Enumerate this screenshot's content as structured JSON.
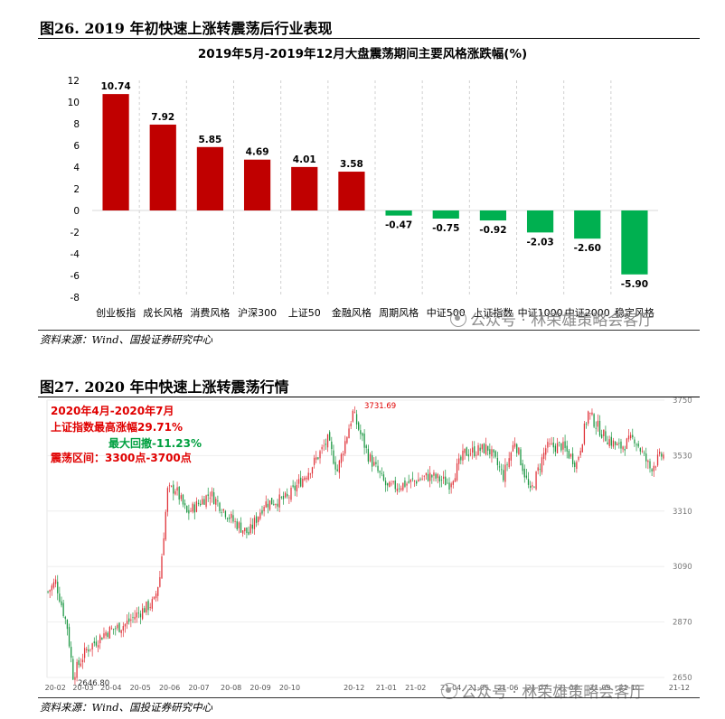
{
  "figure26": {
    "title": "图26. 2019 年初快速上涨转震荡后行业表现",
    "source": "资料来源：Wind、国投证券研究中心",
    "watermark": "公众号 · 林荣雄策略会客厅"
  },
  "figure27": {
    "title": "图27. 2020 年中快速上涨转震荡行情",
    "source": "资料来源：Wind、国投证券研究中心",
    "watermark": "公众号 · 林荣雄策略会客厅",
    "annotations": {
      "line1": "2020年4月-2020年7月",
      "line2": "上证指数最高涨幅29.71%",
      "line3": "最大回撤-11.23%",
      "line4": "震荡区间：3300点-3700点"
    }
  },
  "colors": {
    "up": "#c00000",
    "down": "#00b050",
    "candle_up": "#e0333a",
    "candle_down": "#1a9641"
  },
  "chart_data": [
    {
      "type": "bar",
      "title": "2019年5月-2019年12月大盘震荡期间主要风格涨跌幅(%)",
      "categories": [
        "创业板指",
        "成长风格",
        "消费风格",
        "沪深300",
        "上证50",
        "金融风格",
        "周期风格",
        "中证500",
        "上证指数",
        "中证1000",
        "中证2000",
        "稳定风格"
      ],
      "values": [
        10.74,
        7.92,
        5.85,
        4.69,
        4.01,
        3.58,
        -0.47,
        -0.75,
        -0.92,
        -2.03,
        -2.6,
        -5.9
      ],
      "value_labels": [
        "10.74",
        "7.92",
        "5.85",
        "4.69",
        "4.01",
        "3.58",
        "-0.47",
        "-0.75",
        "-0.92",
        "-2.03",
        "-2.60",
        "-5.90"
      ],
      "ylim": [
        -8,
        12
      ],
      "yticks": [
        "12",
        "10",
        "8",
        "6",
        "4",
        "2",
        "0",
        "-2",
        "-4",
        "-6",
        "-8"
      ],
      "grid": "vertical-dashed"
    },
    {
      "type": "candlestick",
      "series_name": "上证指数",
      "xlabels": [
        "20-02",
        "20-03",
        "20-04",
        "20-05",
        "20-06",
        "20-07",
        "20-08",
        "20-09",
        "20-10",
        "20-12",
        "21-01",
        "21-02",
        "21-04",
        "21-05",
        "21-06",
        "21-07",
        "21-08",
        "21-09",
        "21-10",
        "21-12"
      ],
      "ylim": [
        2650,
        3750
      ],
      "yticks": [
        "3750",
        "3530",
        "3310",
        "3090",
        "2870",
        "2650"
      ],
      "annotations": {
        "low": "2646.80",
        "high": "3731.69"
      },
      "path": [
        [
          0,
          2990
        ],
        [
          4,
          3030
        ],
        [
          10,
          2850
        ],
        [
          13,
          2660
        ],
        [
          20,
          2760
        ],
        [
          30,
          2830
        ],
        [
          40,
          2860
        ],
        [
          46,
          2900
        ],
        [
          55,
          2950
        ],
        [
          58,
          3050
        ],
        [
          62,
          3390
        ],
        [
          66,
          3400
        ],
        [
          72,
          3300
        ],
        [
          84,
          3380
        ],
        [
          96,
          3270
        ],
        [
          104,
          3220
        ],
        [
          112,
          3340
        ],
        [
          124,
          3360
        ],
        [
          136,
          3480
        ],
        [
          145,
          3590
        ],
        [
          150,
          3470
        ],
        [
          158,
          3700
        ],
        [
          166,
          3530
        ],
        [
          176,
          3400
        ],
        [
          186,
          3420
        ],
        [
          198,
          3450
        ],
        [
          208,
          3420
        ],
        [
          216,
          3540
        ],
        [
          228,
          3560
        ],
        [
          236,
          3450
        ],
        [
          242,
          3590
        ],
        [
          250,
          3380
        ],
        [
          258,
          3560
        ],
        [
          266,
          3570
        ],
        [
          274,
          3500
        ],
        [
          280,
          3700
        ],
        [
          288,
          3610
        ],
        [
          296,
          3560
        ],
        [
          304,
          3600
        ],
        [
          312,
          3480
        ],
        [
          318,
          3530
        ]
      ]
    }
  ]
}
